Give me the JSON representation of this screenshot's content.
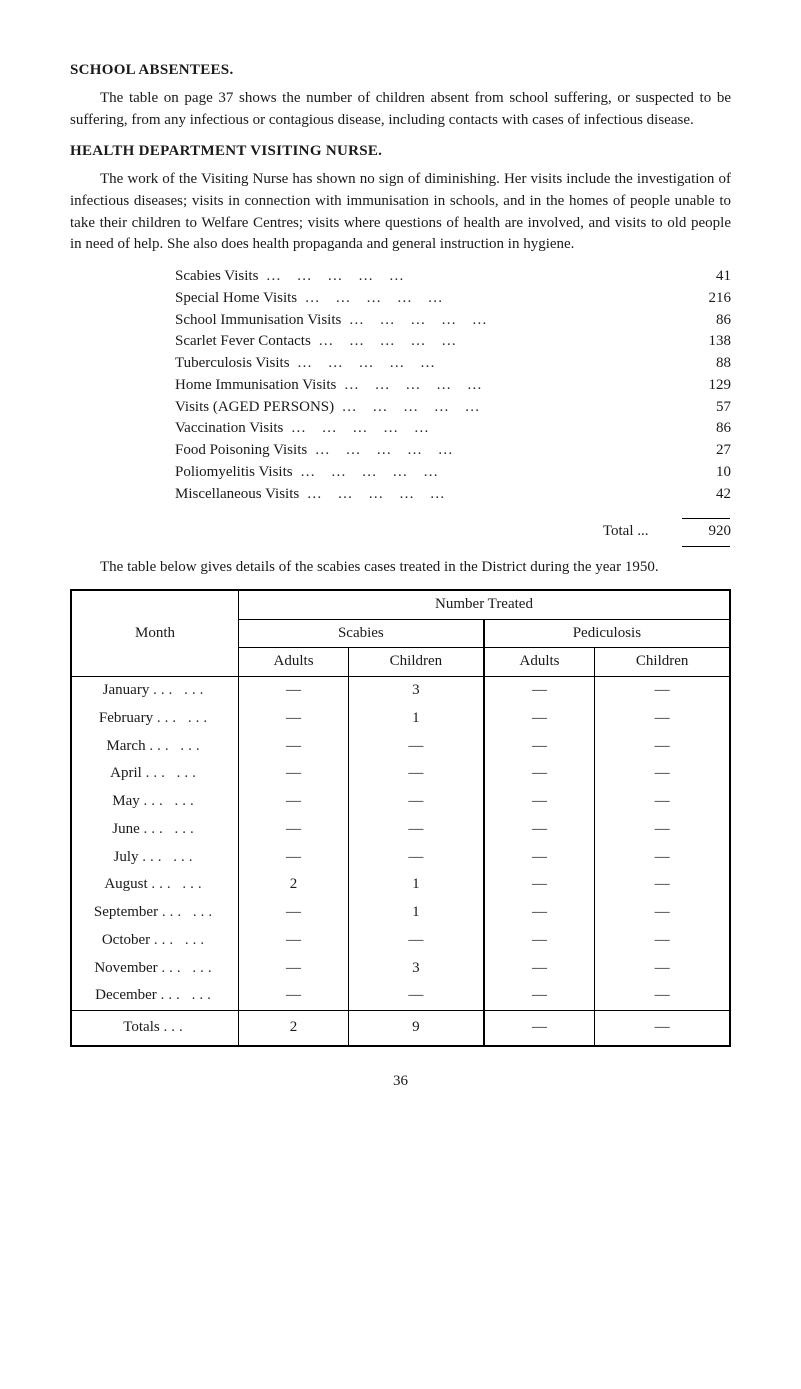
{
  "section1": {
    "heading": "SCHOOL ABSENTEES.",
    "para": "The table on page 37 shows the number of children absent from school suffering, or suspected to be suffering, from any infectious or contagious disease, including contacts with cases of infectious disease."
  },
  "section2": {
    "heading": "HEALTH DEPARTMENT VISITING NURSE.",
    "para": "The work of the Visiting Nurse has shown no sign of diminishing. Her visits include the investigation of infectious diseases; visits in connection with immunisation in schools, and in the homes of people unable to take their children to Welfare Centres; visits where questions of health are involved, and visits to old people in need of help. She also does health propaganda and general instruction in hygiene."
  },
  "visits": {
    "rows": [
      {
        "label": "Scabies Visits",
        "value": "41"
      },
      {
        "label": "Special Home Visits",
        "value": "216"
      },
      {
        "label": "School Immunisation Visits",
        "value": "86"
      },
      {
        "label": "Scarlet Fever Contacts",
        "value": "138"
      },
      {
        "label": "Tuberculosis Visits",
        "value": "88"
      },
      {
        "label": "Home Immunisation Visits",
        "value": "129"
      },
      {
        "label": "Visits (AGED PERSONS)",
        "value": "57"
      },
      {
        "label": "Vaccination Visits",
        "value": "86"
      },
      {
        "label": "Food Poisoning Visits",
        "value": "27"
      },
      {
        "label": "Poliomyelitis Visits",
        "value": "10"
      },
      {
        "label": "Miscellaneous Visits",
        "value": "42"
      }
    ],
    "total_label": "Total ...",
    "total_value": "920"
  },
  "intro_table": "The table below gives details of the scabies cases treated in the District during the year 1950.",
  "table": {
    "header_number": "Number Treated",
    "header_month": "Month",
    "header_scabies": "Scabies",
    "header_ped": "Pediculosis",
    "sub_adults": "Adults",
    "sub_children": "Children",
    "rows": [
      {
        "month": "January",
        "sa": "—",
        "sc": "3",
        "pa": "—",
        "pc": "—"
      },
      {
        "month": "February",
        "sa": "—",
        "sc": "1",
        "pa": "—",
        "pc": "—"
      },
      {
        "month": "March",
        "sa": "—",
        "sc": "—",
        "pa": "—",
        "pc": "—"
      },
      {
        "month": "April",
        "sa": "—",
        "sc": "—",
        "pa": "—",
        "pc": "—"
      },
      {
        "month": "May",
        "sa": "—",
        "sc": "—",
        "pa": "—",
        "pc": "—"
      },
      {
        "month": "June",
        "sa": "—",
        "sc": "—",
        "pa": "—",
        "pc": "—"
      },
      {
        "month": "July",
        "sa": "—",
        "sc": "—",
        "pa": "—",
        "pc": "—"
      },
      {
        "month": "August",
        "sa": "2",
        "sc": "1",
        "pa": "—",
        "pc": "—"
      },
      {
        "month": "September",
        "sa": "—",
        "sc": "1",
        "pa": "—",
        "pc": "—"
      },
      {
        "month": "October",
        "sa": "—",
        "sc": "—",
        "pa": "—",
        "pc": "—"
      },
      {
        "month": "November",
        "sa": "—",
        "sc": "3",
        "pa": "—",
        "pc": "—"
      },
      {
        "month": "December",
        "sa": "—",
        "sc": "—",
        "pa": "—",
        "pc": "—"
      }
    ],
    "totals": {
      "label": "Totals",
      "sa": "2",
      "sc": "9",
      "pa": "—",
      "pc": "—"
    }
  },
  "page_number": "36"
}
